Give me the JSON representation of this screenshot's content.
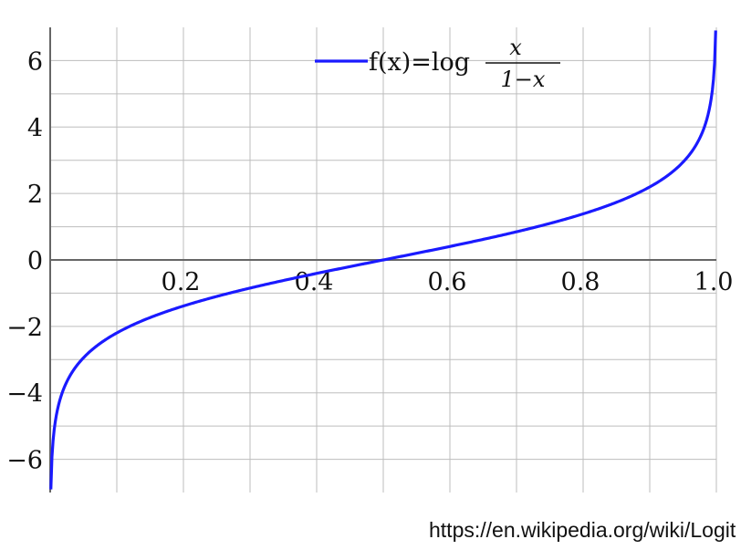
{
  "chart_data": {
    "type": "line",
    "title": "",
    "xlabel": "",
    "ylabel": "",
    "xlim": [
      0,
      1
    ],
    "ylim": [
      -7,
      7
    ],
    "grid": true,
    "x_ticks": [
      0.2,
      0.4,
      0.6,
      0.8,
      1.0
    ],
    "x_tick_labels": [
      "0.2",
      "0.4",
      "0.6",
      "0.8",
      "1.0"
    ],
    "y_ticks": [
      -6,
      -4,
      -2,
      0,
      2,
      4,
      6
    ],
    "y_tick_labels": [
      "−6",
      "−4",
      "−2",
      "0",
      "2",
      "4",
      "6"
    ],
    "legend_position": "top-center",
    "legend": {
      "prefix": "f(x)=log",
      "numerator": "x",
      "denominator": "1−x"
    },
    "series": [
      {
        "name": "f(x)=log x/(1−x)",
        "color": "#1a1aff",
        "x": [
          0.001,
          0.005,
          0.01,
          0.02,
          0.05,
          0.1,
          0.2,
          0.3,
          0.4,
          0.5,
          0.6,
          0.7,
          0.8,
          0.9,
          0.95,
          0.98,
          0.99,
          0.995,
          0.999
        ],
        "y": [
          -6.907,
          -5.293,
          -4.595,
          -3.892,
          -2.944,
          -2.197,
          -1.386,
          -0.847,
          -0.405,
          0,
          0.405,
          0.847,
          1.386,
          2.197,
          2.944,
          3.892,
          4.595,
          5.293,
          6.907
        ]
      }
    ]
  },
  "source_text": "https://en.wikipedia.org/wiki/Logit"
}
